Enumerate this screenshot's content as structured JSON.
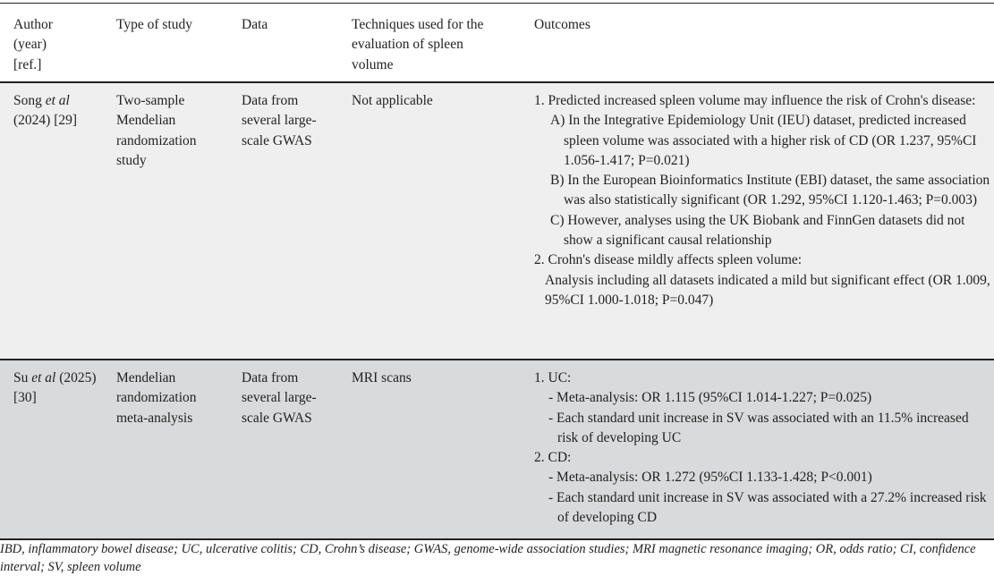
{
  "headers": [
    "Author (year) [ref.]",
    "Type of study",
    "Data",
    "Techniques used for the evaluation of spleen volume",
    "Outcomes"
  ],
  "rows": [
    {
      "author": "Song",
      "etal": "et al",
      "year_ref": "(2024) [29]",
      "type": "Two-sample Mendelian randomization study",
      "data": "Data from several large-scale GWAS",
      "technique": "Not applicable",
      "outcomes": [
        {
          "level": 1,
          "text": "1. Predicted increased spleen volume may influence the risk of Crohn's disease:"
        },
        {
          "level": 2,
          "text": "A) In the Integrative Epidemiology Unit (IEU) dataset, predicted increased spleen volume was associated with a higher risk of CD (OR 1.237, 95%CI 1.056-1.417; P=0.021)"
        },
        {
          "level": 2,
          "text": "B) In the European Bioinformatics Institute (EBI) dataset, the same association was also statistically significant (OR 1.292, 95%CI 1.120-1.463; P=0.003)"
        },
        {
          "level": 2,
          "text": "C) However, analyses using the UK Biobank and FinnGen datasets did not show a significant causal relationship"
        },
        {
          "level": 1,
          "text": "2. Crohn's disease mildly affects spleen volume:"
        },
        {
          "level": 0,
          "text": "Analysis including all datasets indicated a mild but significant effect (OR 1.009, 95%CI 1.000-1.018; P=0.047)"
        }
      ]
    },
    {
      "author": "Su",
      "etal": "et al",
      "year_ref": "(2025) [30]",
      "type": "Mendelian randomization meta-analysis",
      "data": "Data from several large-scale GWAS",
      "technique": "MRI scans",
      "outcomes": [
        {
          "level": 1,
          "text": "1. UC:"
        },
        {
          "level": 3,
          "text": "- Meta-analysis: OR 1.115 (95%CI 1.014-1.227; P=0.025)"
        },
        {
          "level": 3,
          "text": "- Each standard unit increase in SV was associated with an 11.5% increased risk of developing UC"
        },
        {
          "level": 1,
          "text": "2. CD:"
        },
        {
          "level": 3,
          "text": "- Meta-analysis: OR 1.272 (95%CI 1.133-1.428; P<0.001)"
        },
        {
          "level": 3,
          "text": "- Each standard unit increase in SV was associated with a 27.2% increased risk of developing CD"
        }
      ]
    }
  ],
  "footnote": "IBD, inflammatory bowel disease; UC, ulcerative colitis; CD, Crohn’s disease; GWAS, genome-wide association studies; MRI magnetic resonance imaging; OR, odds ratio; CI, confidence interval; SV, spleen volume",
  "colors": {
    "row1_bg": "#efefef",
    "row2_bg": "#d9dadb",
    "rule": "#222222"
  }
}
